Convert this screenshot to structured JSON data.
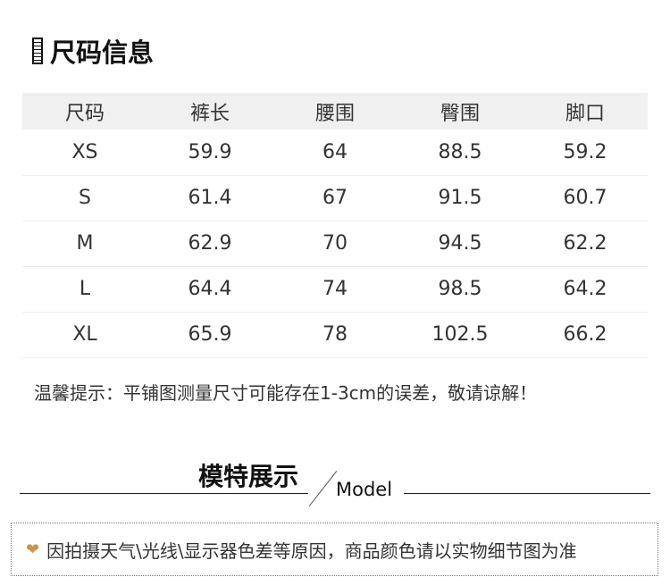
{
  "section_title": "尺码信息",
  "table": {
    "headers": [
      "尺码",
      "裤长",
      "腰围",
      "臀围",
      "脚口"
    ],
    "rows": [
      [
        "XS",
        "59.9",
        "64",
        "88.5",
        "59.2"
      ],
      [
        "S",
        "61.4",
        "67",
        "91.5",
        "60.7"
      ],
      [
        "M",
        "62.9",
        "70",
        "94.5",
        "62.2"
      ],
      [
        "L",
        "64.4",
        "74",
        "98.5",
        "64.2"
      ],
      [
        "XL",
        "65.9",
        "78",
        "102.5",
        "66.2"
      ]
    ]
  },
  "note": "温馨提示：平铺图测量尺寸可能存在1-3cm的误差，敬请谅解！",
  "model_section": {
    "title": "模特展示",
    "subtitle": "Model"
  },
  "disclaimer": {
    "icon": "heart-icon",
    "color": "#c8964f",
    "text": "因拍摄天气\\光线\\显示器色差等原因，商品颜色请以实物细节图为准"
  }
}
